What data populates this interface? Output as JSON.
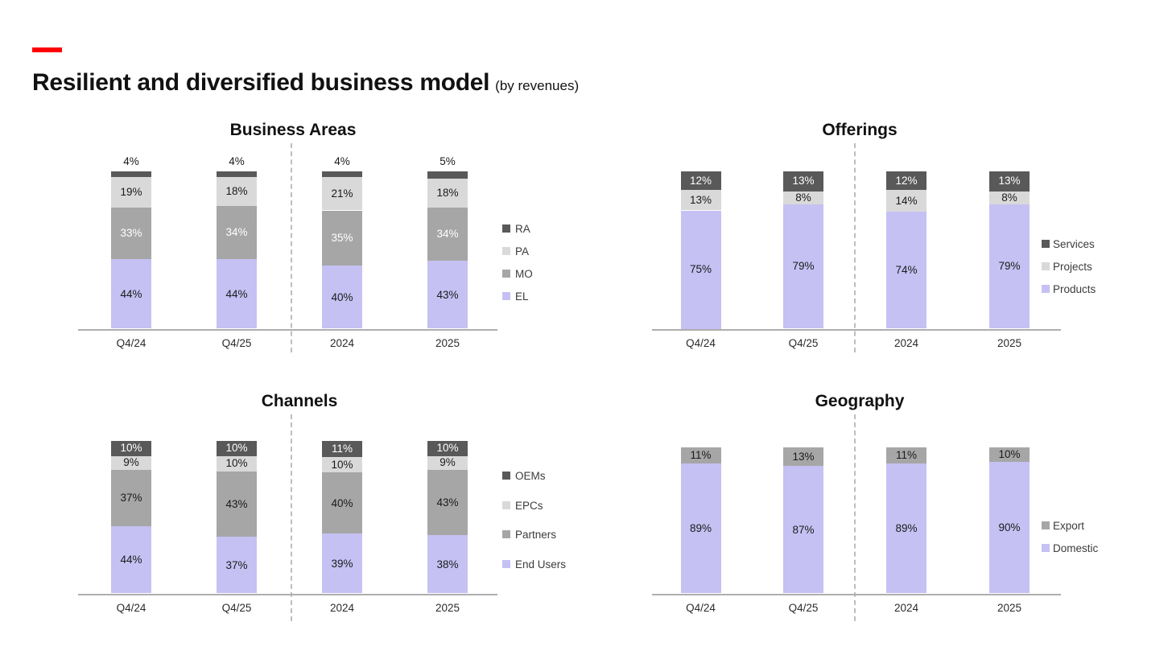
{
  "header": {
    "title": "Resilient and diversified business model",
    "subtitle": "(by revenues)",
    "accent_color": "#ff0000"
  },
  "colors": {
    "purple": "#c5c1f3",
    "gray_light": "#d9d9d9",
    "gray_mid": "#a6a6a6",
    "gray_dark": "#595959",
    "axis_line": "#aeaeae",
    "separator_dash": "#bdbdbd",
    "accent_red": "#ff0000"
  },
  "chart_data": [
    {
      "type": "bar",
      "stacked": true,
      "title": "Business Areas",
      "categories": [
        "Q4/24",
        "Q4/25",
        "2024",
        "2025"
      ],
      "series": [
        {
          "name": "EL",
          "color": "#c5c1f3",
          "label_color": "#1a1a1a",
          "values": [
            44,
            44,
            40,
            43
          ]
        },
        {
          "name": "MO",
          "color": "#a6a6a6",
          "label_color": "#ffffff",
          "values": [
            33,
            34,
            35,
            34
          ]
        },
        {
          "name": "PA",
          "color": "#d9d9d9",
          "label_color": "#1a1a1a",
          "values": [
            19,
            18,
            21,
            18
          ]
        },
        {
          "name": "RA",
          "color": "#595959",
          "label_color": "#1a1a1a",
          "values": [
            4,
            4,
            4,
            5
          ]
        }
      ],
      "legend": [
        "RA",
        "PA",
        "MO",
        "EL"
      ],
      "legend_position": "right",
      "value_format": "percent",
      "ylim": [
        0,
        100
      ],
      "y_axis_visible": false,
      "separator_after_category_index": 1
    },
    {
      "type": "bar",
      "stacked": true,
      "title": "Offerings",
      "categories": [
        "Q4/24",
        "Q4/25",
        "2024",
        "2025"
      ],
      "series": [
        {
          "name": "Products",
          "color": "#c5c1f3",
          "label_color": "#1a1a1a",
          "values": [
            75,
            79,
            74,
            79
          ]
        },
        {
          "name": "Projects",
          "color": "#d9d9d9",
          "label_color": "#1a1a1a",
          "values": [
            13,
            8,
            14,
            8
          ]
        },
        {
          "name": "Services",
          "color": "#595959",
          "label_color": "#ffffff",
          "values": [
            12,
            13,
            12,
            13
          ]
        }
      ],
      "legend": [
        "Services",
        "Projects",
        "Products"
      ],
      "legend_position": "right",
      "value_format": "percent",
      "ylim": [
        0,
        100
      ],
      "y_axis_visible": false,
      "separator_after_category_index": 1
    },
    {
      "type": "bar",
      "stacked": true,
      "title": "Channels",
      "categories": [
        "Q4/24",
        "Q4/25",
        "2024",
        "2025"
      ],
      "series": [
        {
          "name": "End Users",
          "color": "#c5c1f3",
          "label_color": "#1a1a1a",
          "values": [
            44,
            37,
            39,
            38
          ]
        },
        {
          "name": "Partners",
          "color": "#a6a6a6",
          "label_color": "#1a1a1a",
          "values": [
            37,
            43,
            40,
            43
          ]
        },
        {
          "name": "EPCs",
          "color": "#d9d9d9",
          "label_color": "#1a1a1a",
          "values": [
            9,
            10,
            10,
            9
          ]
        },
        {
          "name": "OEMs",
          "color": "#595959",
          "label_color": "#ffffff",
          "values": [
            10,
            10,
            11,
            10
          ]
        }
      ],
      "legend": [
        "OEMs",
        "EPCs",
        "Partners",
        "End Users"
      ],
      "legend_position": "right",
      "value_format": "percent",
      "ylim": [
        0,
        100
      ],
      "y_axis_visible": false,
      "separator_after_category_index": 1
    },
    {
      "type": "bar",
      "stacked": true,
      "title": "Geography",
      "categories": [
        "Q4/24",
        "Q4/25",
        "2024",
        "2025"
      ],
      "series": [
        {
          "name": "Domestic",
          "color": "#c5c1f3",
          "label_color": "#1a1a1a",
          "values": [
            89,
            87,
            89,
            90
          ]
        },
        {
          "name": "Export",
          "color": "#a6a6a6",
          "label_color": "#1a1a1a",
          "values": [
            11,
            13,
            11,
            10
          ]
        }
      ],
      "legend": [
        "Export",
        "Domestic"
      ],
      "legend_position": "right",
      "value_format": "percent",
      "ylim": [
        0,
        100
      ],
      "y_axis_visible": false,
      "separator_after_category_index": 1
    }
  ]
}
